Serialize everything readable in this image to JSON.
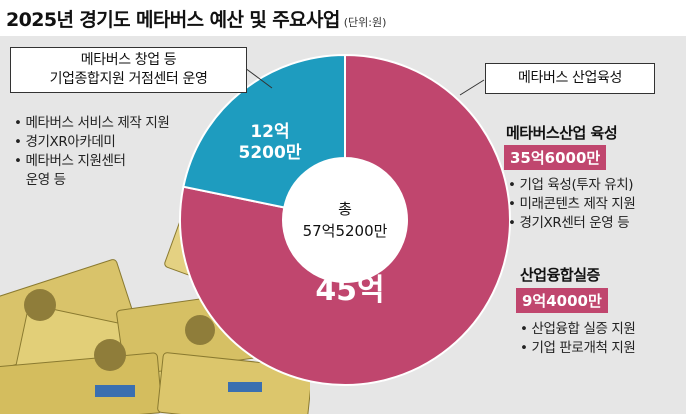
{
  "title": "2025년 경기도 메타버스 예산 및 주요사업",
  "unit": "(단위:원)",
  "colors": {
    "magenta": "#c0466e",
    "teal": "#1e9cbf",
    "bg": "#e6e6e6"
  },
  "left_box": {
    "line1": "메타버스 창업 등",
    "line2": "기업종합지원 거점센터 운영"
  },
  "left_bullets": [
    "메타버스 서비스 제작 지원",
    "경기XR아카데미",
    "메타버스 지원센터",
    "운영 등"
  ],
  "right_box": "메타버스 산업육성",
  "section1": {
    "heading": "메타버스산업 육성",
    "amount": "35억6000만",
    "bullets": [
      "기업 육성(투자 유치)",
      "미래콘텐츠 제작 지원",
      "경기XR센터 운영 등"
    ]
  },
  "section2": {
    "heading": "산업융합실증",
    "amount": "9억4000만",
    "bullets": [
      "산업융합 실증 지원",
      "기업 판로개척 지원"
    ]
  },
  "chart_data": {
    "type": "pie",
    "title": "2025년 경기도 메타버스 예산 및 주요사업",
    "unit": "원",
    "total_label": "총",
    "total": "57억5200만",
    "slices": [
      {
        "label": "45억",
        "value": 45.0,
        "color": "#c0466e"
      },
      {
        "label": "12억 5200만",
        "value": 12.52,
        "color": "#1e9cbf"
      }
    ]
  }
}
